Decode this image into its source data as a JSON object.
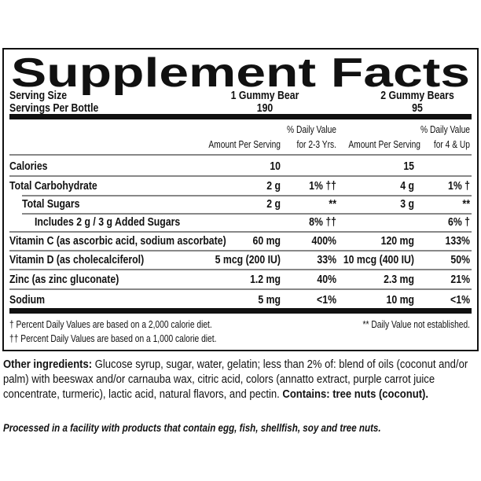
{
  "title": "Supplement Facts",
  "serving": {
    "size_label": "Serving Size",
    "size_1": "1 Gummy Bear",
    "size_2": "2 Gummy Bears",
    "count_label": "Servings Per Bottle",
    "count_1": "190",
    "count_2": "95"
  },
  "columns": {
    "amount_1": "Amount Per Serving",
    "dv_1": [
      "% Daily Value",
      "for 2-3 Yrs."
    ],
    "amount_2": "Amount Per Serving",
    "dv_2": [
      "% Daily Value",
      "for 4 & Up"
    ]
  },
  "rows": [
    [
      "Calories",
      "10",
      null,
      "15",
      null
    ],
    [
      "Total Carbohydrate",
      "2 g",
      "1% ††",
      "4 g",
      "1% †"
    ],
    [
      "Total Sugars",
      "2 g",
      "**",
      "3 g",
      "**"
    ],
    [
      "Includes 2 g / 3 g Added Sugars",
      null,
      "8% ††",
      null,
      "6% †"
    ],
    [
      "Vitamin C (as ascorbic acid, sodium ascorbate)",
      "60 mg",
      "400%",
      "120 mg",
      "133%"
    ],
    [
      "Vitamin D (as cholecalciferol)",
      "5 mcg (200 IU)",
      "33%",
      "10 mcg (400 IU)",
      "50%"
    ],
    [
      "Zinc (as zinc gluconate)",
      "1.2 mg",
      "40%",
      "2.3 mg",
      "21%"
    ],
    [
      "Sodium",
      "5 mg",
      "<1%",
      "10 mg",
      "<1%"
    ]
  ],
  "footnotes": [
    "† Percent Daily Values are based on a 2,000 calorie diet.",
    "†† Percent Daily Values are based on a 1,000 calorie diet."
  ],
  "footnote_right": "** Daily Value not established.",
  "ingredients": {
    "label": "Other ingredients:",
    "text": "Glucose syrup, sugar, water, gelatin; less than 2% of: blend of oils (coconut and/or palm) with beeswax and/or carnauba wax, citric acid, colors (annatto extract, purple carrot juice concentrate, turmeric), lactic acid, natural flavors, and pectin.",
    "contains": "Contains: tree nuts (coconut)."
  },
  "processed": "Processed in a facility with products that contain egg, fish,  shellfish, soy and tree nuts."
}
